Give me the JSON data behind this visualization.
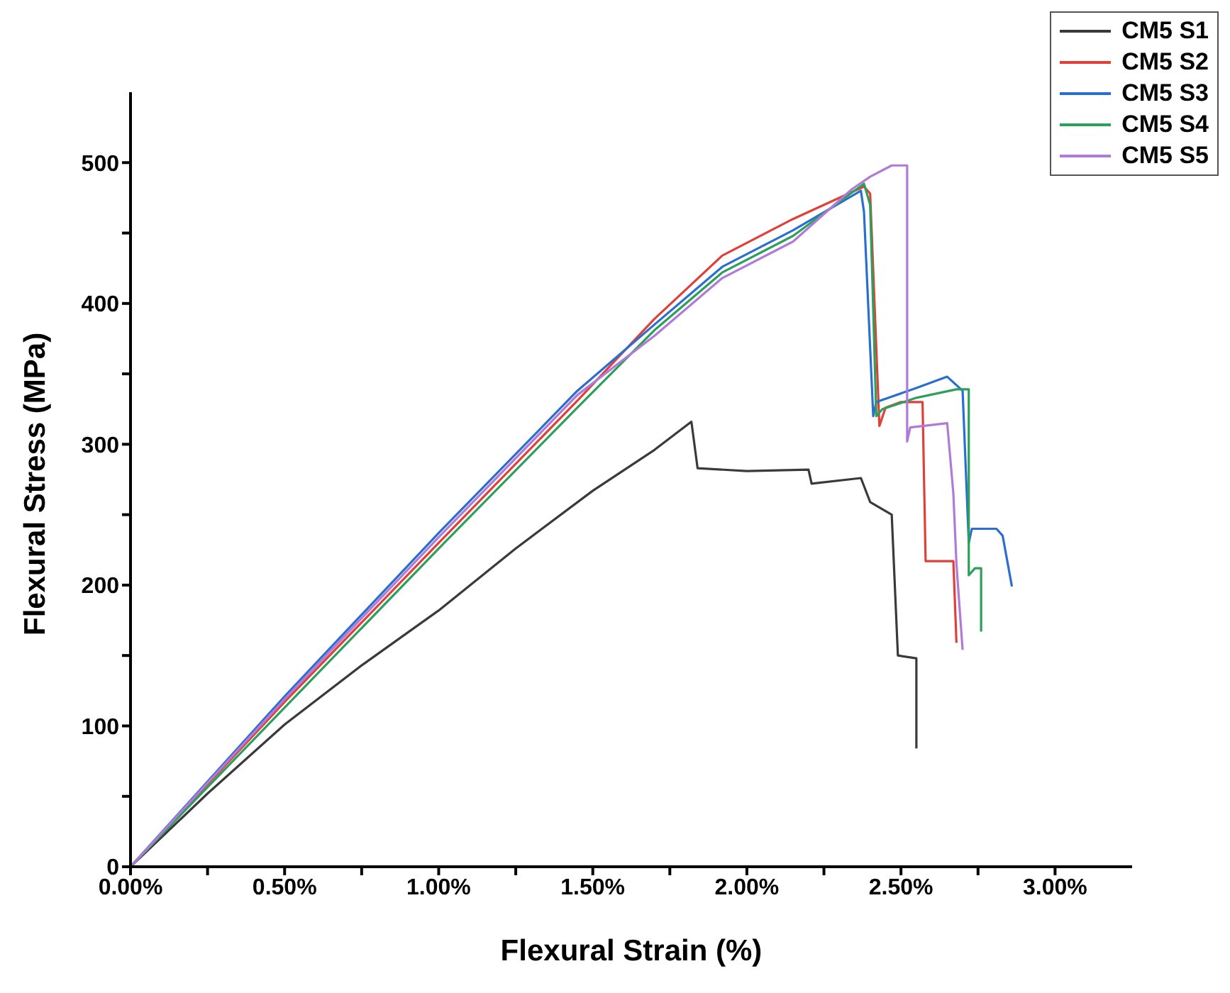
{
  "chart_data": {
    "type": "line",
    "xlabel": "Flexural Strain (%)",
    "ylabel": "Flexural Stress (MPa)",
    "xlim": [
      0,
      3.25
    ],
    "ylim": [
      0,
      550
    ],
    "xticks": [
      {
        "value": 0,
        "label": "0.00%"
      },
      {
        "value": 0.25,
        "label": null
      },
      {
        "value": 0.5,
        "label": "0.50%"
      },
      {
        "value": 0.75,
        "label": null
      },
      {
        "value": 1,
        "label": "1.00%"
      },
      {
        "value": 1.25,
        "label": null
      },
      {
        "value": 1.5,
        "label": "1.50%"
      },
      {
        "value": 1.75,
        "label": null
      },
      {
        "value": 2,
        "label": "2.00%"
      },
      {
        "value": 2.25,
        "label": null
      },
      {
        "value": 2.5,
        "label": "2.50%"
      },
      {
        "value": 2.75,
        "label": null
      },
      {
        "value": 3,
        "label": "3.00%"
      }
    ],
    "yticks": [
      0,
      {
        "value": 50,
        "label": null
      },
      100,
      {
        "value": 150,
        "label": null
      },
      200,
      {
        "value": 250,
        "label": null
      },
      300,
      {
        "value": 350,
        "label": null
      },
      400,
      {
        "value": 450,
        "label": null
      },
      500
    ],
    "grid": false,
    "legend": "top right",
    "marker": "none",
    "line_style": "solid",
    "series": [
      {
        "name": "CM5 S1",
        "color": "#3a3a3a",
        "x": [
          0,
          0.25,
          0.5,
          0.75,
          1.0,
          1.25,
          1.5,
          1.7,
          1.82,
          1.84,
          2.0,
          2.2,
          2.21,
          2.37,
          2.4,
          2.47,
          2.49,
          2.55,
          2.55
        ],
        "values": [
          0,
          52,
          101,
          143,
          182,
          226,
          267,
          296,
          316,
          283,
          281,
          282,
          272,
          276,
          259,
          250,
          150,
          148,
          84
        ]
      },
      {
        "name": "CM5 S2",
        "color": "#e0403a",
        "x": [
          0,
          0.5,
          1.0,
          1.45,
          1.7,
          1.92,
          2.15,
          2.38,
          2.4,
          2.43,
          2.45,
          2.5,
          2.57,
          2.58,
          2.67,
          2.68
        ],
        "values": [
          0,
          117,
          230,
          331,
          389,
          434,
          460,
          483,
          478,
          313,
          326,
          330,
          330,
          217,
          217,
          159
        ]
      },
      {
        "name": "CM5 S3",
        "color": "#2a6fd0",
        "x": [
          0,
          0.5,
          1.0,
          1.45,
          1.7,
          1.92,
          2.15,
          2.37,
          2.38,
          2.41,
          2.42,
          2.55,
          2.65,
          2.7,
          2.72,
          2.73,
          2.81,
          2.83,
          2.86
        ],
        "values": [
          0,
          121,
          237,
          338,
          385,
          426,
          452,
          480,
          465,
          320,
          330,
          340,
          348,
          338,
          230,
          240,
          240,
          235,
          199
        ]
      },
      {
        "name": "CM5 S4",
        "color": "#2ca05a",
        "x": [
          0,
          0.5,
          1.0,
          1.45,
          1.7,
          1.92,
          2.15,
          2.38,
          2.4,
          2.42,
          2.44,
          2.55,
          2.68,
          2.72,
          2.72,
          2.74,
          2.76,
          2.76
        ],
        "values": [
          0,
          113,
          226,
          326,
          381,
          422,
          448,
          485,
          470,
          320,
          325,
          333,
          339,
          339,
          207,
          212,
          212,
          167
        ]
      },
      {
        "name": "CM5 S5",
        "color": "#b07ad8",
        "x": [
          0,
          0.5,
          1.0,
          1.45,
          1.7,
          1.92,
          2.15,
          2.34,
          2.4,
          2.47,
          2.52,
          2.52,
          2.53,
          2.65,
          2.67,
          2.68,
          2.7
        ],
        "values": [
          0,
          119,
          234,
          335,
          377,
          418,
          444,
          481,
          490,
          498,
          498,
          302,
          312,
          315,
          265,
          215,
          154
        ]
      }
    ]
  }
}
